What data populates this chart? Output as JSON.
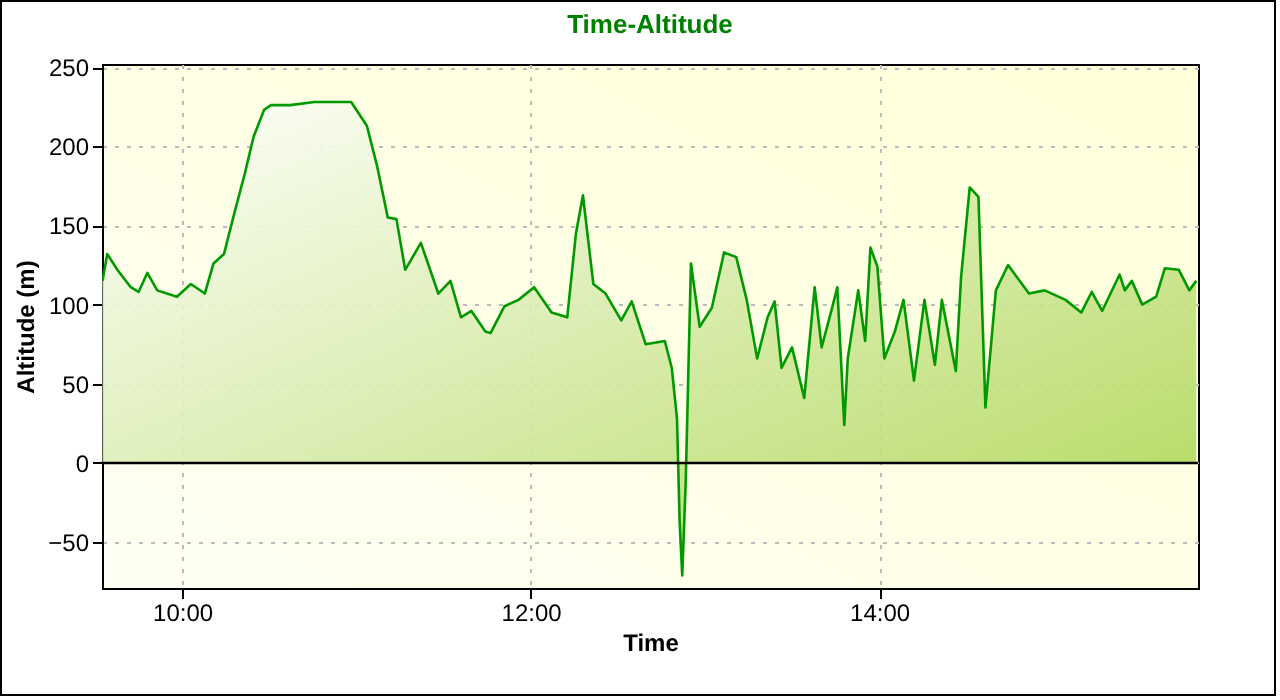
{
  "chart_data": {
    "type": "area",
    "title": "Time-Altitude",
    "xlabel": "Time",
    "ylabel": "Altitude (m)",
    "x": [
      9.543,
      9.57,
      9.628,
      9.705,
      9.75,
      9.8,
      9.857,
      9.97,
      10.05,
      10.13,
      10.18,
      10.24,
      10.3,
      10.36,
      10.41,
      10.47,
      10.51,
      10.62,
      10.76,
      10.97,
      11.06,
      11.12,
      11.18,
      11.23,
      11.28,
      11.37,
      11.47,
      11.54,
      11.6,
      11.66,
      11.74,
      11.77,
      11.85,
      11.93,
      12.02,
      12.12,
      12.21,
      12.26,
      12.3,
      12.36,
      12.43,
      12.52,
      12.58,
      12.66,
      12.77,
      12.81,
      12.84,
      12.855,
      12.87,
      12.89,
      12.92,
      12.97,
      13.04,
      13.11,
      13.18,
      13.24,
      13.3,
      13.36,
      13.4,
      13.44,
      13.5,
      13.57,
      13.63,
      13.67,
      13.73,
      13.76,
      13.8,
      13.82,
      13.88,
      13.92,
      13.95,
      13.99,
      14.03,
      14.09,
      14.14,
      14.2,
      14.26,
      14.32,
      14.36,
      14.44,
      14.47,
      14.52,
      14.57,
      14.61,
      14.67,
      14.74,
      14.86,
      14.95,
      15.07,
      15.16,
      15.22,
      15.28,
      15.38,
      15.41,
      15.45,
      15.51,
      15.59,
      15.64,
      15.72,
      15.78,
      15.82
    ],
    "series": [
      {
        "color": "#009900",
        "values": [
          115,
          132,
          122,
          111,
          108,
          120,
          109,
          105,
          113,
          107,
          126,
          132,
          158,
          183,
          206,
          223,
          226,
          226,
          228,
          228,
          213,
          187,
          155,
          154,
          122,
          139,
          107,
          115,
          92,
          96,
          83,
          82,
          99,
          103,
          111,
          95,
          92,
          145,
          169,
          113,
          107,
          90,
          102,
          75,
          77,
          60,
          28,
          -37,
          -71,
          -12,
          126,
          86,
          98,
          133,
          130,
          103,
          66,
          92,
          102,
          60,
          73,
          41,
          111,
          73,
          98,
          111,
          24,
          66,
          109,
          77,
          136,
          124,
          66,
          83,
          103,
          52,
          103,
          62,
          103,
          58,
          117,
          174,
          168,
          35,
          109,
          125,
          107,
          109,
          103,
          95,
          108,
          96,
          119,
          109,
          115,
          100,
          105,
          123,
          122,
          109,
          115
        ]
      }
    ],
    "xlim": [
      9.54,
      15.83
    ],
    "xticks": [
      {
        "value": 10,
        "label": "10:00"
      },
      {
        "value": 12,
        "label": "12:00"
      },
      {
        "value": 14,
        "label": "14:00"
      }
    ],
    "ylim": [
      -79,
      252
    ],
    "yticks": [
      -50,
      0,
      50,
      100,
      150,
      200,
      250
    ],
    "ref_lines": [
      {
        "axis": "y",
        "value": 0,
        "color": "#000000"
      }
    ],
    "grid": true
  }
}
